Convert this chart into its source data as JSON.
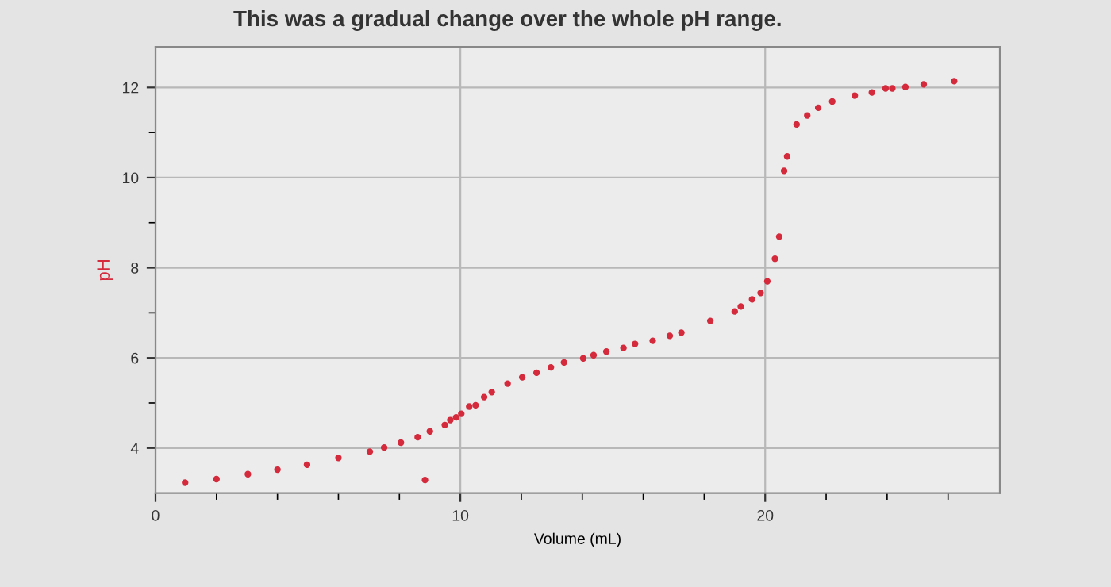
{
  "chart_data": {
    "type": "scatter",
    "title": "This was a gradual change over the whole pH range.",
    "xlabel": "Volume (mL)",
    "ylabel": "pH",
    "x": [
      0.97,
      2.0,
      3.03,
      4.0,
      4.97,
      6.0,
      7.03,
      7.5,
      8.05,
      8.6,
      8.84,
      9.0,
      9.49,
      9.67,
      9.86,
      10.03,
      10.29,
      10.5,
      10.78,
      11.03,
      11.55,
      12.03,
      12.5,
      12.97,
      13.4,
      14.03,
      14.37,
      14.79,
      15.35,
      15.73,
      16.31,
      16.87,
      17.25,
      18.2,
      19.0,
      19.2,
      19.57,
      19.85,
      20.07,
      20.32,
      20.46,
      20.62,
      20.72,
      21.03,
      21.38,
      21.74,
      22.2,
      22.94,
      23.5,
      23.95,
      24.17,
      24.6,
      25.2,
      26.2
    ],
    "series": [
      {
        "color": "#d42a3c",
        "values": [
          3.23,
          3.31,
          3.42,
          3.52,
          3.63,
          3.78,
          3.92,
          4.01,
          4.12,
          4.24,
          3.29,
          4.37,
          4.51,
          4.62,
          4.68,
          4.76,
          4.92,
          4.95,
          5.13,
          5.24,
          5.43,
          5.57,
          5.67,
          5.79,
          5.9,
          5.99,
          6.06,
          6.14,
          6.22,
          6.31,
          6.38,
          6.49,
          6.56,
          6.82,
          7.03,
          7.14,
          7.3,
          7.44,
          7.7,
          8.2,
          8.69,
          10.15,
          10.47,
          11.18,
          11.38,
          11.55,
          11.69,
          11.82,
          11.89,
          11.98,
          11.98,
          12.01,
          12.07,
          12.14
        ]
      }
    ],
    "xlim": [
      0,
      27.7
    ],
    "ylim": [
      3.0,
      12.9
    ],
    "xticks": [
      0,
      {
        "value": 2,
        "label": null
      },
      {
        "value": 4,
        "label": null
      },
      {
        "value": 6,
        "label": null
      },
      {
        "value": 8,
        "label": null
      },
      10,
      {
        "value": 12,
        "label": null
      },
      {
        "value": 14,
        "label": null
      },
      {
        "value": 16,
        "label": null
      },
      {
        "value": 18,
        "label": null
      },
      20,
      {
        "value": 22,
        "label": null
      },
      {
        "value": 24,
        "label": null
      },
      {
        "value": 26,
        "label": null
      }
    ],
    "yticks": [
      4,
      {
        "value": 5,
        "label": null
      },
      6,
      {
        "value": 7,
        "label": null
      },
      8,
      {
        "value": 9,
        "label": null
      },
      10,
      {
        "value": 11,
        "label": null
      },
      12
    ],
    "grid": true,
    "marker": "circle"
  }
}
